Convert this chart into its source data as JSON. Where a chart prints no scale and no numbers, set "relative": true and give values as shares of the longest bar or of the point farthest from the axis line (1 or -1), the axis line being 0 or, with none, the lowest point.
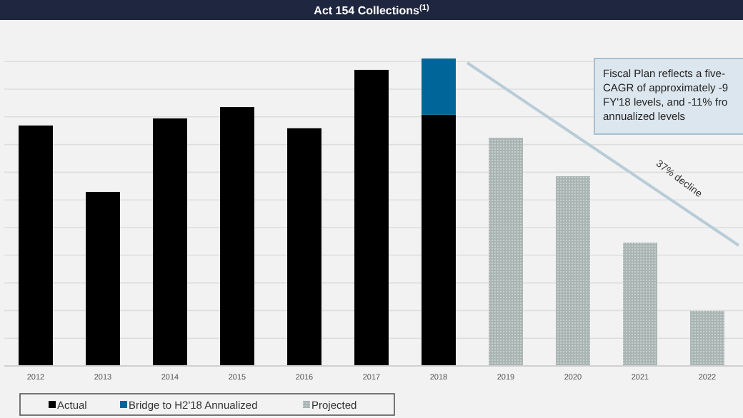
{
  "chart_data": {
    "type": "bar",
    "title": "Act 154 Collections$^{(1)}$",
    "relative": true,
    "stacked": true,
    "grid": "y",
    "legend": "bottom left",
    "categories": [
      "2012",
      "2013",
      "2014",
      "2015",
      "2016",
      "2017",
      "2018",
      "2019",
      "2020",
      "2021",
      "2022"
    ],
    "series": [
      {
        "name": "Actual",
        "color": "#000000",
        "values": [
          0.782,
          0.566,
          0.805,
          0.842,
          0.773,
          0.963,
          0.817,
          null,
          null,
          null,
          null
        ]
      },
      {
        "name": "Bridge to H2'18 Annualized",
        "color": "#006699",
        "values": [
          null,
          null,
          null,
          null,
          null,
          null,
          0.183,
          null,
          null,
          null,
          null
        ]
      },
      {
        "name": "Projected",
        "color": "#a9b5b3",
        "values": [
          null,
          null,
          null,
          null,
          null,
          null,
          null,
          0.742,
          0.617,
          0.401,
          0.179
        ]
      }
    ],
    "annotations": [
      "Fiscal Plan reflects a five-\nCAGR of approximately -9\nFY'18 levels, and -11% fro\nannualized levels",
      "37% decline"
    ]
  }
}
